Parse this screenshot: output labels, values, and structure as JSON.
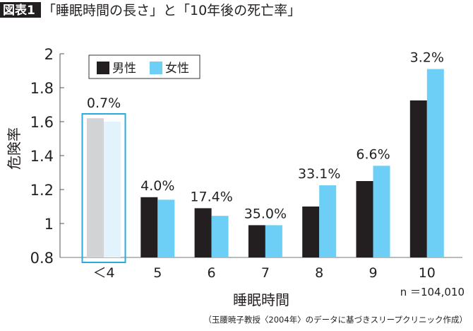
{
  "header": {
    "badge": "図表1",
    "title": "「睡眠時間の長さ」と「10年後の死亡率」"
  },
  "chart_data": {
    "type": "bar",
    "title": "「睡眠時間の長さ」と「10年後の死亡率」",
    "xlabel": "睡眠時間",
    "ylabel": "危険率",
    "categories": [
      "＜4",
      "5",
      "6",
      "7",
      "8",
      "9",
      "10"
    ],
    "series": [
      {
        "name": "男性",
        "color": "#231f20",
        "values": [
          1.62,
          1.155,
          1.09,
          0.99,
          1.1,
          1.25,
          1.725
        ]
      },
      {
        "name": "女性",
        "color": "#6dcff6",
        "values": [
          1.6,
          1.14,
          1.045,
          0.99,
          1.225,
          1.34,
          1.91
        ]
      }
    ],
    "data_labels": [
      "0.7%",
      "4.0%",
      "17.4%",
      "35.0%",
      "33.1%",
      "6.6%",
      "3.2%"
    ],
    "ylim": [
      0.8,
      2
    ],
    "yticks": [
      "0.8",
      "1",
      "1.2",
      "1.4",
      "1.6",
      "1.8",
      "2"
    ],
    "ytick_values": [
      0.8,
      1.0,
      1.2,
      1.4,
      1.6,
      1.8,
      2.0
    ],
    "highlighted_category": "＜4",
    "highlight_color": "#29abe2",
    "faded_colors": [
      "#d1d3d4",
      "#e2f3fb"
    ],
    "legend": {
      "placement": "top-left",
      "entries": [
        "男性",
        "女性"
      ]
    },
    "grid": false,
    "annotation_n": "n ＝104,010",
    "source": "（玉腰暁子教授〈2004年〉のデータに基づきスリープクリニック作成）"
  }
}
